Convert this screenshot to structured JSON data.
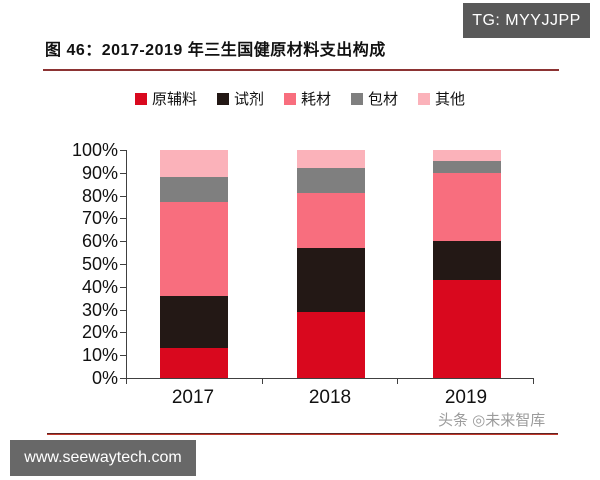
{
  "header": {
    "badge_text": "TG: MYYJJPP"
  },
  "figure": {
    "title": "图 46：2017-2019 年三生国健原材料支出构成"
  },
  "chart_data": {
    "type": "bar",
    "stacked": true,
    "stack_mode": "percent",
    "title": "图 46：2017-2019 年三生国健原材料支出构成",
    "categories": [
      "2017",
      "2018",
      "2019"
    ],
    "series": [
      {
        "key": "raw-materials",
        "name": "原辅料",
        "color": "#d9081e",
        "values": [
          13,
          29,
          43
        ]
      },
      {
        "key": "reagents",
        "name": "试剂",
        "color": "#231815",
        "values": [
          23,
          28,
          17
        ]
      },
      {
        "key": "consumables",
        "name": "耗材",
        "color": "#f86e7e",
        "values": [
          41,
          24,
          30
        ]
      },
      {
        "key": "packaging",
        "name": "包材",
        "color": "#7f7f7f",
        "values": [
          11,
          11,
          5
        ]
      },
      {
        "key": "others",
        "name": "其他",
        "color": "#fbb2ba",
        "values": [
          12,
          8,
          5
        ]
      }
    ],
    "xlabel": "",
    "ylabel": "",
    "ylim": [
      0,
      100
    ],
    "yticks": [
      "0%",
      "10%",
      "20%",
      "30%",
      "40%",
      "50%",
      "60%",
      "70%",
      "80%",
      "90%",
      "100%"
    ],
    "legend_position": "top",
    "grid": false
  },
  "watermark_text": "头条 ◎未来智库",
  "footer": {
    "website": "www.seewaytech.com"
  },
  "colors": {
    "accent_rule": "#8c3333",
    "bottom_rule": "#c0392b",
    "badge_bg": "#595959",
    "footer_bg": "#686868",
    "axis": "#404040"
  }
}
